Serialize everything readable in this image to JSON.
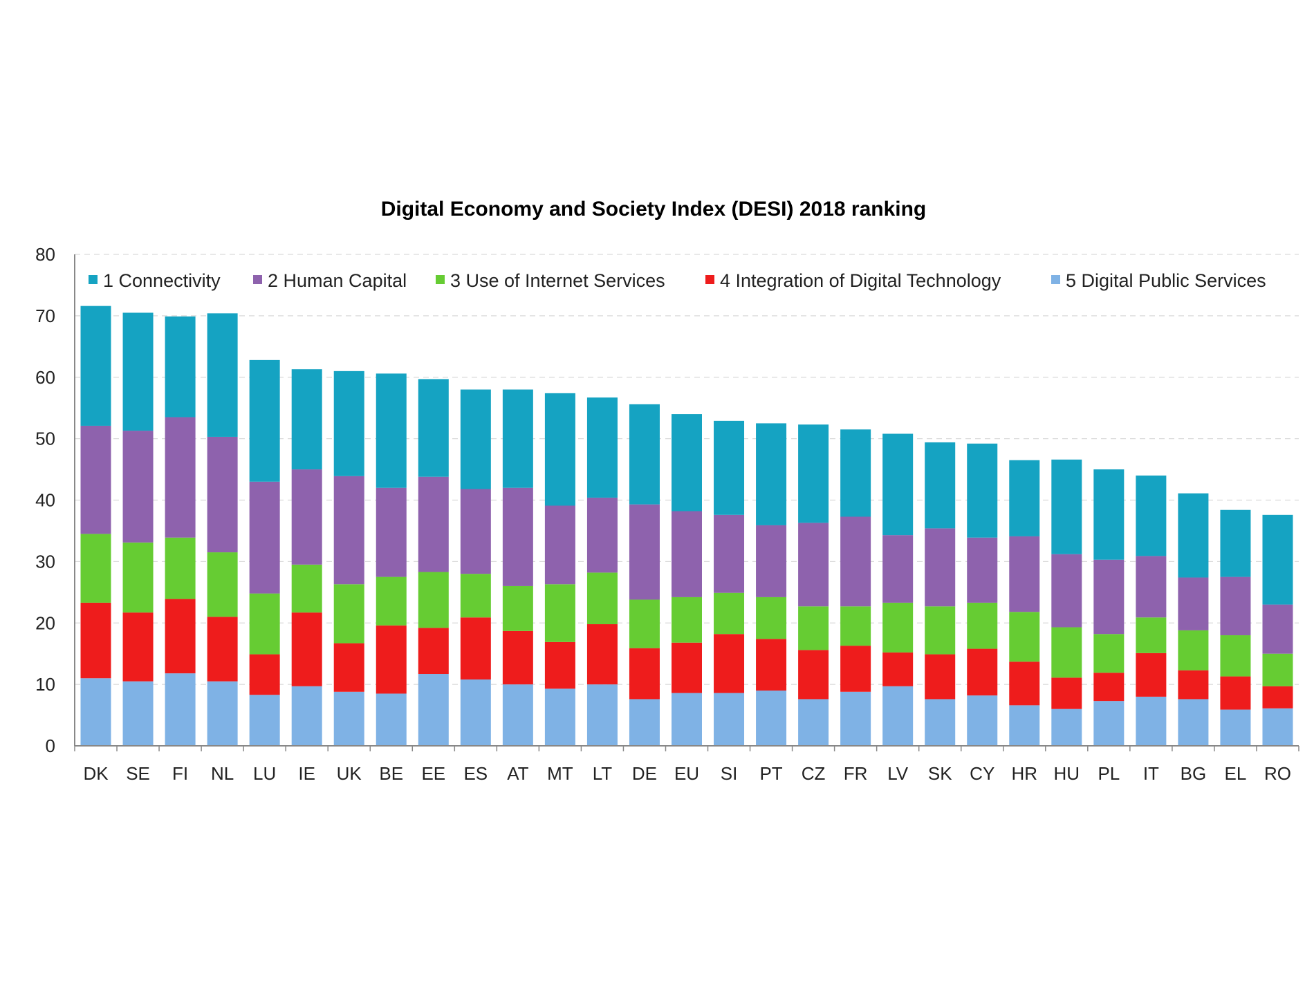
{
  "chart_data": {
    "type": "bar",
    "stacked": true,
    "title": "Digital Economy and Society Index (DESI) 2018 ranking",
    "xlabel": "",
    "ylabel": "",
    "ylim": [
      0,
      80
    ],
    "yticks": [
      0,
      10,
      20,
      30,
      40,
      50,
      60,
      70,
      80
    ],
    "grid": true,
    "legend_position": "top",
    "categories": [
      "DK",
      "SE",
      "FI",
      "NL",
      "LU",
      "IE",
      "UK",
      "BE",
      "EE",
      "ES",
      "AT",
      "MT",
      "LT",
      "DE",
      "EU",
      "SI",
      "PT",
      "CZ",
      "FR",
      "LV",
      "SK",
      "CY",
      "HR",
      "HU",
      "PL",
      "IT",
      "BG",
      "EL",
      "RO"
    ],
    "series": [
      {
        "name": "5 Digital Public Services",
        "color": "#7fb2e5",
        "values": [
          11.0,
          10.5,
          11.8,
          10.5,
          8.3,
          9.7,
          8.8,
          8.5,
          11.7,
          10.8,
          10.0,
          9.3,
          10.0,
          7.6,
          8.6,
          8.6,
          9.0,
          7.6,
          8.8,
          9.7,
          7.6,
          8.2,
          6.6,
          6.0,
          7.3,
          8.0,
          7.6,
          5.9,
          6.1
        ]
      },
      {
        "name": "4 Integration of Digital Technology",
        "color": "#ee1c1c",
        "values": [
          12.3,
          11.2,
          12.1,
          10.5,
          6.6,
          12.0,
          7.9,
          11.1,
          7.5,
          10.1,
          8.7,
          7.6,
          9.8,
          8.3,
          8.2,
          9.6,
          8.4,
          8.0,
          7.5,
          5.5,
          7.3,
          7.6,
          7.1,
          5.1,
          4.6,
          7.1,
          4.7,
          5.4,
          3.6
        ]
      },
      {
        "name": "3 Use of Internet Services",
        "color": "#66cc33",
        "values": [
          11.2,
          11.4,
          10.0,
          10.5,
          9.9,
          7.8,
          9.6,
          7.9,
          9.1,
          7.1,
          7.3,
          9.4,
          8.4,
          7.9,
          7.4,
          6.7,
          6.8,
          7.1,
          6.4,
          8.1,
          7.8,
          7.5,
          8.1,
          8.2,
          6.3,
          5.8,
          6.5,
          6.7,
          5.3
        ]
      },
      {
        "name": "2 Human Capital",
        "color": "#8e62ad",
        "values": [
          17.6,
          18.2,
          19.6,
          18.8,
          18.2,
          15.5,
          17.6,
          14.5,
          15.5,
          13.8,
          16.0,
          12.8,
          12.2,
          15.5,
          14.0,
          12.7,
          11.7,
          13.6,
          14.6,
          11.0,
          12.7,
          10.6,
          12.3,
          11.9,
          12.1,
          10.0,
          8.6,
          9.5,
          8.0
        ]
      },
      {
        "name": "1 Connectivity",
        "color": "#15a3c2",
        "values": [
          19.5,
          19.2,
          16.4,
          20.1,
          19.8,
          16.3,
          17.1,
          18.6,
          15.9,
          16.2,
          16.0,
          18.3,
          16.3,
          16.3,
          15.8,
          15.3,
          16.6,
          16.0,
          14.2,
          16.5,
          14.0,
          15.3,
          12.4,
          15.4,
          14.7,
          13.1,
          13.7,
          10.9,
          14.6
        ]
      }
    ]
  }
}
